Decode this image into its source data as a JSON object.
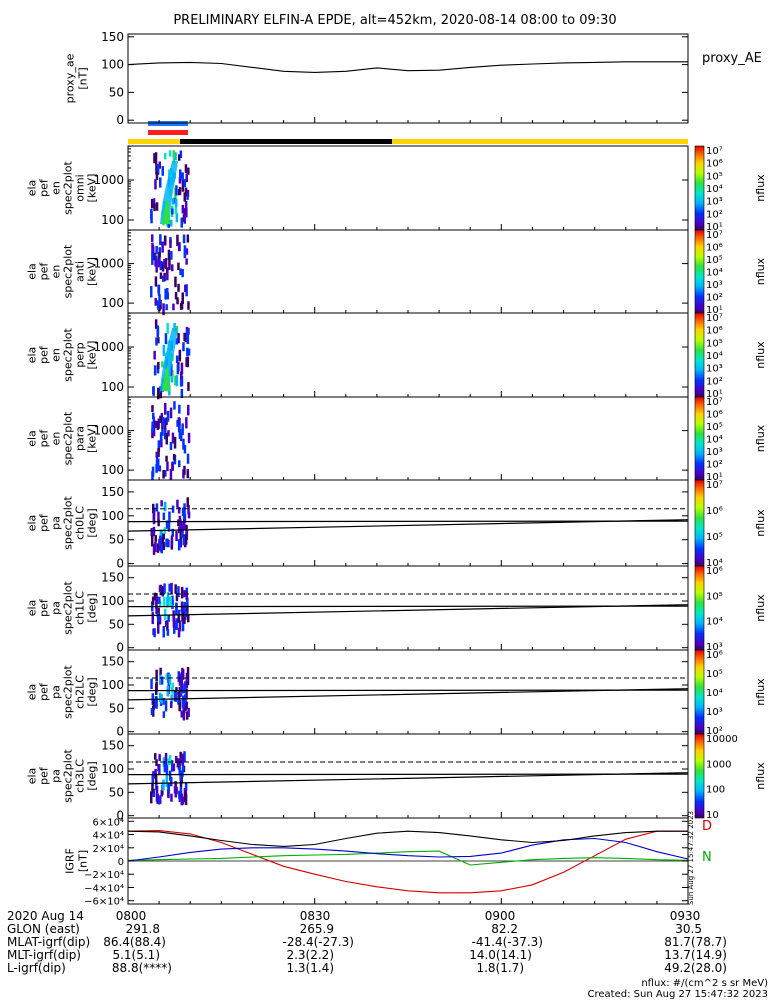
{
  "title": "PRELIMINARY ELFIN-A EPDE, alt=452km, 2020-08-14 08:00 to 09:30",
  "colors": {
    "spec_blue": "#1f75ff",
    "spec_red": "#ff1f1f",
    "night": "#000000",
    "day": "#ffd400"
  },
  "chart_data": [
    {
      "type": "line",
      "id": "proxy_ae",
      "ylabel": [
        "proxy_ae",
        "[nT]"
      ],
      "legend": "proxy_AE",
      "ylim": [
        -5,
        155
      ],
      "yticks": [
        "150",
        "100",
        "50",
        "0"
      ],
      "ytick_values": [
        150,
        100,
        50,
        0
      ],
      "x": [
        "08:00",
        "08:05",
        "08:10",
        "08:15",
        "08:20",
        "08:25",
        "08:30",
        "08:35",
        "08:40",
        "08:45",
        "08:50",
        "08:55",
        "09:00",
        "09:05",
        "09:10",
        "09:15",
        "09:20",
        "09:25",
        "09:30"
      ],
      "values": [
        100,
        103,
        104,
        102,
        95,
        88,
        86,
        88,
        94,
        89,
        90,
        95,
        99,
        101,
        103,
        104,
        105,
        105,
        105
      ]
    },
    {
      "type": "heatmap",
      "id": "en_omni",
      "ylabel": [
        "ela",
        "pef",
        "en",
        "spec2plot",
        "omni",
        "[keV]"
      ],
      "yticks": [
        "1000",
        "100"
      ],
      "ytick_values": [
        1000,
        100
      ],
      "ylog": true,
      "colorbar": {
        "label": "nflux",
        "ticks": [
          "10⁷",
          "10⁶",
          "10⁵",
          "10⁴",
          "10³",
          "10²",
          "10¹"
        ]
      }
    },
    {
      "type": "heatmap",
      "id": "en_anti",
      "ylabel": [
        "ela",
        "pef",
        "en",
        "spec2plot",
        "anti",
        "[keV]"
      ],
      "yticks": [
        "1000",
        "100"
      ],
      "ytick_values": [
        1000,
        100
      ],
      "ylog": true,
      "colorbar": {
        "label": "nflux",
        "ticks": [
          "10⁷",
          "10⁶",
          "10⁵",
          "10⁴",
          "10³",
          "10²",
          "10¹"
        ]
      }
    },
    {
      "type": "heatmap",
      "id": "en_perp",
      "ylabel": [
        "ela",
        "pef",
        "en",
        "spec2plot",
        "perp",
        "[keV]"
      ],
      "yticks": [
        "1000",
        "100"
      ],
      "ytick_values": [
        1000,
        100
      ],
      "ylog": true,
      "colorbar": {
        "label": "nflux",
        "ticks": [
          "10⁷",
          "10⁶",
          "10⁵",
          "10⁴",
          "10³",
          "10²",
          "10¹"
        ]
      }
    },
    {
      "type": "heatmap",
      "id": "en_para",
      "ylabel": [
        "ela",
        "pef",
        "en",
        "spec2plot",
        "para",
        "[keV]"
      ],
      "yticks": [
        "1000",
        "100"
      ],
      "ytick_values": [
        1000,
        100
      ],
      "ylog": true,
      "colorbar": {
        "label": "nflux",
        "ticks": [
          "10⁷",
          "10⁶",
          "10⁵",
          "10⁴",
          "10³",
          "10²",
          "10¹"
        ]
      }
    },
    {
      "type": "heatmap",
      "id": "pa_ch0",
      "ylabel": [
        "ela",
        "pef",
        "pa",
        "spec2plot",
        "ch0LC",
        "[deg]"
      ],
      "yticks": [
        "150",
        "100",
        "50",
        "0"
      ],
      "ytick_values": [
        150,
        100,
        50,
        0
      ],
      "ylim": [
        -5,
        175
      ],
      "lines": {
        "solid": [
          88,
          89
        ],
        "dashed": [
          115,
          115
        ],
        "lc": [
          68,
          92
        ]
      },
      "colorbar": {
        "label": "nflux",
        "ticks": [
          "10⁷",
          "10⁶",
          "10⁵",
          "10⁴"
        ]
      }
    },
    {
      "type": "heatmap",
      "id": "pa_ch1",
      "ylabel": [
        "ela",
        "pef",
        "pa",
        "spec2plot",
        "ch1LC",
        "[deg]"
      ],
      "yticks": [
        "150",
        "100",
        "50",
        "0"
      ],
      "ytick_values": [
        150,
        100,
        50,
        0
      ],
      "ylim": [
        -5,
        175
      ],
      "lines": {
        "solid": [
          88,
          89
        ],
        "dashed": [
          115,
          115
        ],
        "lc": [
          68,
          92
        ]
      },
      "colorbar": {
        "label": "nflux",
        "ticks": [
          "10⁶",
          "10⁵",
          "10⁴",
          "10³"
        ]
      }
    },
    {
      "type": "heatmap",
      "id": "pa_ch2",
      "ylabel": [
        "ela",
        "pef",
        "pa",
        "spec2plot",
        "ch2LC",
        "[deg]"
      ],
      "yticks": [
        "150",
        "100",
        "50",
        "0"
      ],
      "ytick_values": [
        150,
        100,
        50,
        0
      ],
      "ylim": [
        -5,
        175
      ],
      "lines": {
        "solid": [
          88,
          89
        ],
        "dashed": [
          115,
          115
        ],
        "lc": [
          68,
          92
        ]
      },
      "colorbar": {
        "label": "nflux",
        "ticks": [
          "10⁶",
          "10⁵",
          "10⁴",
          "10³",
          "10²"
        ]
      }
    },
    {
      "type": "heatmap",
      "id": "pa_ch3",
      "ylabel": [
        "ela",
        "pef",
        "pa",
        "spec2plot",
        "ch3LC",
        "[deg]"
      ],
      "yticks": [
        "150",
        "100",
        "50",
        "0"
      ],
      "ytick_values": [
        150,
        100,
        50,
        0
      ],
      "ylim": [
        -5,
        175
      ],
      "lines": {
        "solid": [
          88,
          89
        ],
        "dashed": [
          115,
          115
        ],
        "lc": [
          68,
          92
        ]
      },
      "colorbar": {
        "label": "nflux",
        "ticks": [
          "10000",
          "1000",
          "100",
          "10"
        ]
      }
    },
    {
      "type": "line",
      "id": "igrf",
      "ylabel": [
        "IGRF",
        "[nT]"
      ],
      "ylim": [
        -65000,
        65000
      ],
      "yticks": [
        "6×10⁴",
        "4×10⁴",
        "2×10⁴",
        "0",
        "−2×10⁴",
        "−4×10⁴",
        "−6×10⁴"
      ],
      "ytick_values": [
        60000,
        40000,
        20000,
        0,
        -20000,
        -40000,
        -60000
      ],
      "legend": [
        "D",
        "N"
      ],
      "side_note": "Sun Aug 27 15:47:32 2023",
      "x": [
        "08:00",
        "08:05",
        "08:10",
        "08:15",
        "08:20",
        "08:25",
        "08:30",
        "08:35",
        "08:40",
        "08:45",
        "08:50",
        "08:55",
        "09:00",
        "09:05",
        "09:10",
        "09:15",
        "09:20",
        "09:25",
        "09:30"
      ],
      "series": [
        {
          "name": "D",
          "color": "#d40000",
          "values": [
            45000,
            46000,
            41000,
            28000,
            10000,
            -8000,
            -20000,
            -31000,
            -39000,
            -45000,
            -48000,
            -48000,
            -45000,
            -36000,
            -17000,
            8000,
            33000,
            45000,
            45000
          ]
        },
        {
          "name": "N",
          "color": "#00b000",
          "values": [
            1000,
            2000,
            3000,
            4000,
            6000,
            8000,
            9000,
            10000,
            12000,
            14000,
            15000,
            -6000,
            -2000,
            2000,
            4000,
            5000,
            4000,
            2000,
            1000
          ]
        },
        {
          "color": "#0000d0",
          "values": [
            0,
            6000,
            13000,
            18000,
            20000,
            20000,
            18000,
            15000,
            11000,
            8000,
            6000,
            7000,
            12000,
            24000,
            32000,
            34000,
            28000,
            14000,
            3000
          ]
        },
        {
          "color": "#000000",
          "values": [
            45000,
            44000,
            38000,
            31000,
            25000,
            22000,
            25000,
            34000,
            42000,
            45000,
            43000,
            38000,
            32000,
            28000,
            31000,
            38000,
            43000,
            45000,
            45000
          ]
        }
      ]
    }
  ],
  "ephemeris": {
    "time_row": [
      "2020 Aug 14",
      "0800",
      "0830",
      "0900",
      "0930"
    ],
    "rows": [
      {
        "label": "GLON (east)",
        "values": [
          "291.8",
          "265.9",
          "82.2",
          "30.5"
        ]
      },
      {
        "label": "MLAT-igrf(dip)",
        "values": [
          "86.4(88.4)",
          "-28.4(-27.3)",
          "-41.4(-37.3)",
          "81.7(78.7)"
        ]
      },
      {
        "label": "MLT-igrf(dip)",
        "values": [
          "5.1(5.1)",
          "2.3(2.2)",
          "14.0(14.1)",
          "13.7(14.9)"
        ]
      },
      {
        "label": "L-igrf(dip)",
        "values": [
          "88.8(****)",
          "1.3(1.4)",
          "1.8(1.7)",
          "49.2(28.0)"
        ]
      }
    ]
  },
  "footer": {
    "units": "nflux: #/(cm^2 s sr MeV)",
    "created": "Created: Sun Aug 27 15:47:32 2023"
  }
}
